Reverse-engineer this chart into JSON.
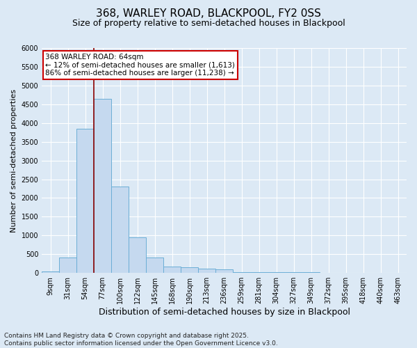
{
  "title_line1": "368, WARLEY ROAD, BLACKPOOL, FY2 0SS",
  "title_line2": "Size of property relative to semi-detached houses in Blackpool",
  "xlabel": "Distribution of semi-detached houses by size in Blackpool",
  "ylabel": "Number of semi-detached properties",
  "categories": [
    "9sqm",
    "31sqm",
    "54sqm",
    "77sqm",
    "100sqm",
    "122sqm",
    "145sqm",
    "168sqm",
    "190sqm",
    "213sqm",
    "236sqm",
    "259sqm",
    "281sqm",
    "304sqm",
    "327sqm",
    "349sqm",
    "372sqm",
    "395sqm",
    "418sqm",
    "440sqm",
    "463sqm"
  ],
  "values": [
    50,
    420,
    3850,
    4650,
    2300,
    950,
    420,
    175,
    150,
    120,
    100,
    30,
    30,
    25,
    20,
    15,
    10,
    8,
    5,
    3,
    2
  ],
  "bar_color": "#c5d9ef",
  "bar_edge_color": "#6baed6",
  "vline_color": "#8b0000",
  "annotation_text": "368 WARLEY ROAD: 64sqm\n← 12% of semi-detached houses are smaller (1,613)\n86% of semi-detached houses are larger (11,238) →",
  "ylim": [
    0,
    6000
  ],
  "yticks": [
    0,
    500,
    1000,
    1500,
    2000,
    2500,
    3000,
    3500,
    4000,
    4500,
    5000,
    5500,
    6000
  ],
  "bg_color": "#dce9f5",
  "footer_text": "Contains HM Land Registry data © Crown copyright and database right 2025.\nContains public sector information licensed under the Open Government Licence v3.0.",
  "title_fontsize": 11,
  "subtitle_fontsize": 9,
  "annotation_fontsize": 7.5,
  "xlabel_fontsize": 9,
  "ylabel_fontsize": 8,
  "footer_fontsize": 6.5,
  "tick_fontsize": 7
}
